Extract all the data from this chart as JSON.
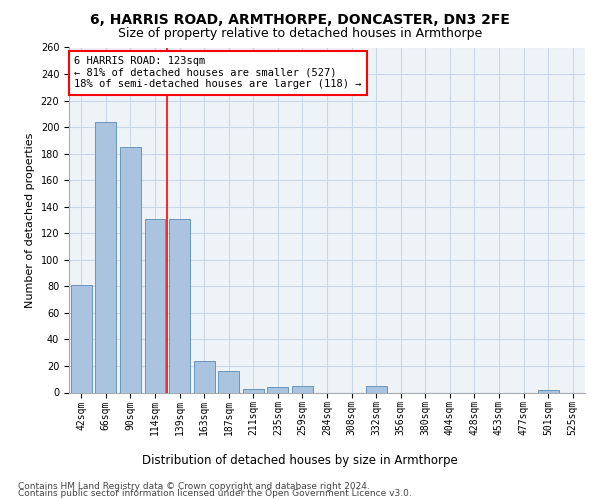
{
  "title1": "6, HARRIS ROAD, ARMTHORPE, DONCASTER, DN3 2FE",
  "title2": "Size of property relative to detached houses in Armthorpe",
  "xlabel": "Distribution of detached houses by size in Armthorpe",
  "ylabel": "Number of detached properties",
  "categories": [
    "42sqm",
    "66sqm",
    "90sqm",
    "114sqm",
    "139sqm",
    "163sqm",
    "187sqm",
    "211sqm",
    "235sqm",
    "259sqm",
    "284sqm",
    "308sqm",
    "332sqm",
    "356sqm",
    "380sqm",
    "404sqm",
    "428sqm",
    "453sqm",
    "477sqm",
    "501sqm",
    "525sqm"
  ],
  "values": [
    81,
    204,
    185,
    131,
    131,
    24,
    16,
    3,
    4,
    5,
    0,
    0,
    5,
    0,
    0,
    0,
    0,
    0,
    0,
    2,
    0
  ],
  "bar_color": "#aac4e0",
  "bar_edge_color": "#5a8ab5",
  "grid_color": "#c8d8e8",
  "vline_x_index": 3,
  "vline_color": "red",
  "annotation_line1": "6 HARRIS ROAD: 123sqm",
  "annotation_line2": "← 81% of detached houses are smaller (527)",
  "annotation_line3": "18% of semi-detached houses are larger (118) →",
  "annotation_box_color": "white",
  "annotation_box_edge": "red",
  "ylim": [
    0,
    260
  ],
  "yticks": [
    0,
    20,
    40,
    60,
    80,
    100,
    120,
    140,
    160,
    180,
    200,
    220,
    240,
    260
  ],
  "footer1": "Contains HM Land Registry data © Crown copyright and database right 2024.",
  "footer2": "Contains public sector information licensed under the Open Government Licence v3.0.",
  "bg_color": "#eef3f8",
  "title1_fontsize": 10,
  "title2_fontsize": 9,
  "xlabel_fontsize": 8.5,
  "ylabel_fontsize": 8,
  "tick_fontsize": 7,
  "annotation_fontsize": 7.5,
  "footer_fontsize": 6.5
}
